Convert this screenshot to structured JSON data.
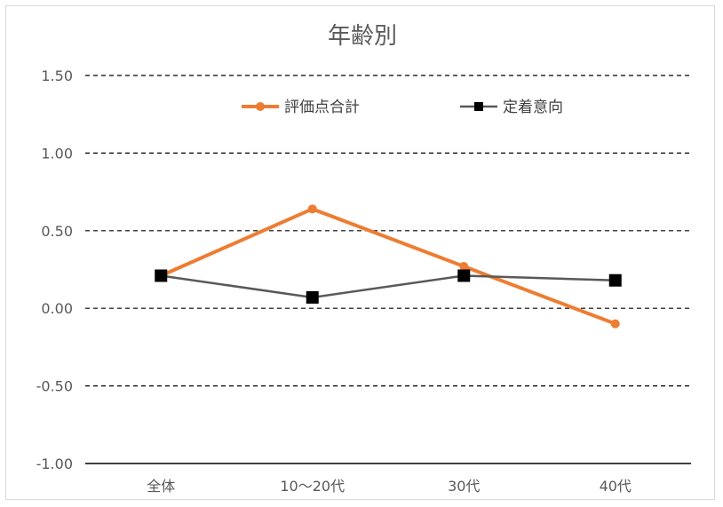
{
  "chart_data": {
    "type": "line",
    "title": "年齢別",
    "xlabel": "",
    "ylabel": "",
    "categories": [
      "全体",
      "10～20代",
      "30代",
      "40代"
    ],
    "ylim": [
      -1.0,
      1.5
    ],
    "yticks": [
      1.5,
      1.0,
      0.5,
      0.0,
      -0.5,
      -1.0
    ],
    "ytick_labels": [
      "1.50",
      "1.00",
      "0.50",
      "0.00",
      "-0.50",
      "-1.00"
    ],
    "negative_tick_color": "#ff0000",
    "grid": "dashed horizontal",
    "legend_position": "top",
    "series": [
      {
        "name": "評価点合計",
        "values": [
          0.21,
          0.64,
          0.27,
          -0.1
        ],
        "color": "#ed7d31",
        "marker": "circle"
      },
      {
        "name": "定着意向",
        "values": [
          0.21,
          0.07,
          0.21,
          0.18
        ],
        "color": "#595959",
        "marker": "square"
      }
    ]
  }
}
